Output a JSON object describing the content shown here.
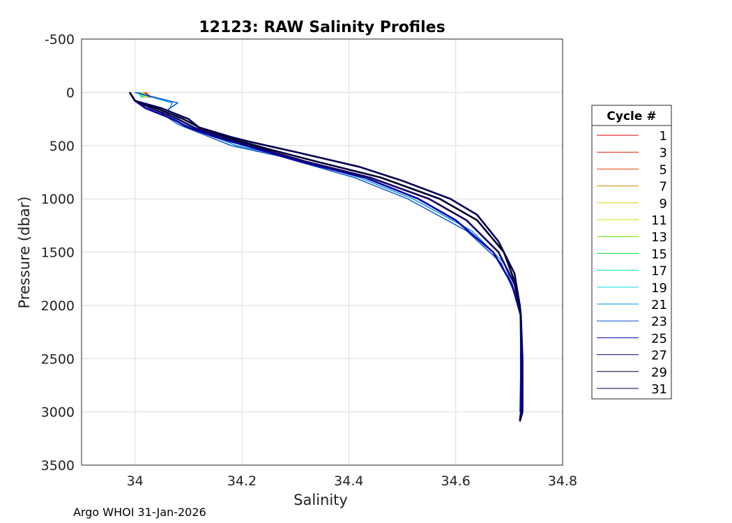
{
  "chart_data": {
    "type": "line",
    "title": "12123: RAW Salinity Profiles",
    "xlabel": "Salinity",
    "ylabel": "Pressure (dbar)",
    "xlim": [
      33.9,
      34.8
    ],
    "ylim": [
      -500,
      3500
    ],
    "y_reversed": true,
    "grid": true,
    "xticks": [
      34,
      34.2,
      34.4,
      34.6,
      34.8
    ],
    "xtick_labels": [
      "34",
      "34.2",
      "34.4",
      "34.6",
      "34.8"
    ],
    "yticks": [
      -500,
      0,
      500,
      1000,
      1500,
      2000,
      2500,
      3000,
      3500
    ],
    "ytick_labels": [
      "-500",
      "0",
      "500",
      "1000",
      "1500",
      "2000",
      "2500",
      "3000",
      "3500"
    ],
    "legend_title": "Cycle #",
    "legend_position": "right",
    "series": [
      {
        "name": "1",
        "color": "#e00000",
        "pressure": [
          0,
          20,
          50
        ],
        "salinity": [
          34.02,
          34.025,
          34.03
        ]
      },
      {
        "name": "3",
        "color": "#e01a00",
        "pressure": [
          0,
          20,
          50
        ],
        "salinity": [
          34.02,
          34.024,
          34.028
        ]
      },
      {
        "name": "5",
        "color": "#e04000",
        "pressure": [
          0,
          20,
          50
        ],
        "salinity": [
          34.018,
          34.022,
          34.026
        ]
      },
      {
        "name": "7",
        "color": "#e08a00",
        "pressure": [
          0,
          20,
          50
        ],
        "salinity": [
          34.016,
          34.02,
          34.024
        ]
      },
      {
        "name": "9",
        "color": "#e0d000",
        "pressure": [
          0,
          20,
          50
        ],
        "salinity": [
          34.014,
          34.018,
          34.022
        ]
      },
      {
        "name": "11",
        "color": "#b8e000",
        "pressure": [
          0,
          20,
          50
        ],
        "salinity": [
          34.012,
          34.016,
          34.02
        ]
      },
      {
        "name": "13",
        "color": "#60e000",
        "pressure": [
          0,
          20,
          50
        ],
        "salinity": [
          34.01,
          34.014,
          34.018
        ]
      },
      {
        "name": "15",
        "color": "#00e040",
        "pressure": [
          0,
          20,
          50
        ],
        "salinity": [
          34.008,
          34.012,
          34.016
        ]
      },
      {
        "name": "17",
        "color": "#00e0a0",
        "pressure": [
          0,
          20,
          50
        ],
        "salinity": [
          34.006,
          34.01,
          34.014
        ]
      },
      {
        "name": "19",
        "color": "#00d8e0",
        "pressure": [
          0,
          20,
          50
        ],
        "salinity": [
          34.005,
          34.008,
          34.012
        ]
      },
      {
        "name": "21",
        "color": "#0090e0",
        "pressure": [
          0,
          100,
          200,
          300,
          400,
          500,
          600,
          800,
          1000,
          1300,
          1600,
          2000
        ],
        "salinity": [
          34.0,
          34.07,
          34.06,
          34.09,
          34.14,
          34.19,
          34.28,
          34.42,
          34.52,
          34.63,
          34.69,
          34.72
        ]
      },
      {
        "name": "23",
        "color": "#0050d0",
        "pressure": [
          0,
          100,
          200,
          300,
          400,
          500,
          600,
          800,
          1000,
          1300,
          1600,
          2000,
          2500,
          3000
        ],
        "salinity": [
          34.0,
          34.08,
          34.05,
          34.08,
          34.13,
          34.18,
          34.27,
          34.41,
          34.51,
          34.62,
          34.685,
          34.72,
          34.722,
          34.72
        ]
      },
      {
        "name": "25",
        "color": "#0000a8",
        "pressure": [
          0,
          80,
          150,
          250,
          330,
          420,
          520,
          650,
          800,
          1000,
          1200,
          1500,
          1800,
          2100,
          2500,
          3000,
          3080
        ],
        "salinity": [
          33.99,
          34.0,
          34.02,
          34.07,
          34.1,
          34.15,
          34.22,
          34.31,
          34.43,
          34.53,
          34.6,
          34.67,
          34.705,
          34.722,
          34.722,
          34.722,
          34.72
        ]
      },
      {
        "name": "27",
        "color": "#180060",
        "pressure": [
          0,
          80,
          150,
          250,
          330,
          420,
          520,
          650,
          800,
          1000,
          1200,
          1500,
          1800,
          2100
        ],
        "salinity": [
          33.99,
          34.0,
          34.03,
          34.08,
          34.11,
          34.16,
          34.23,
          34.32,
          34.44,
          34.55,
          34.62,
          34.68,
          34.71,
          34.722
        ]
      },
      {
        "name": "29",
        "color": "#000030",
        "pressure": [
          0,
          80,
          150,
          250,
          330,
          420,
          520,
          650,
          800,
          1000,
          1200,
          1500,
          1800,
          2100
        ],
        "salinity": [
          33.99,
          34.0,
          34.04,
          34.09,
          34.12,
          34.17,
          34.24,
          34.34,
          34.46,
          34.57,
          34.64,
          34.69,
          34.712,
          34.722
        ]
      },
      {
        "name": "31",
        "color": "#000050",
        "pressure": [
          0,
          80,
          150,
          250,
          330,
          420,
          470,
          560,
          700,
          830,
          1000,
          1150,
          1400,
          1700,
          2000,
          2100,
          2500,
          3000,
          3090
        ],
        "salinity": [
          33.99,
          34.0,
          34.05,
          34.1,
          34.12,
          34.18,
          34.22,
          34.3,
          34.42,
          34.5,
          34.59,
          34.64,
          34.68,
          34.71,
          34.72,
          34.722,
          34.725,
          34.725,
          34.72
        ]
      }
    ]
  },
  "footer": {
    "credit": "Argo WHOI 31-Jan-2026"
  }
}
